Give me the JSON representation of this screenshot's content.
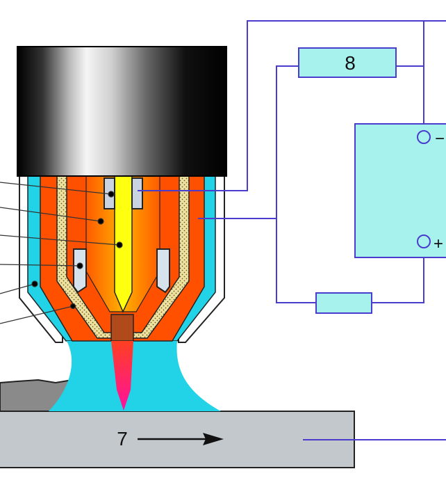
{
  "labels": {
    "resistor_top": "8",
    "workpiece": "7",
    "terminal_minus": "−",
    "terminal_plus": "+"
  },
  "colors": {
    "wire": "#4a3ccc",
    "box_fill": "#a8f2ee",
    "shield_gas": "#22d2e6",
    "nozzle_wall": "#ff5000",
    "electrode": "#ffff10",
    "tungsten_tip": "#b04a1a",
    "workpiece": "#c2c8cc",
    "insulation_dots": "#efe2a0"
  }
}
